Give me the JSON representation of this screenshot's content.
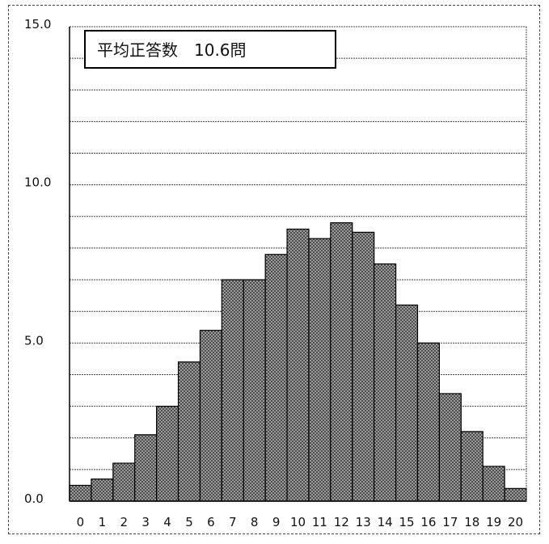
{
  "chart_data": {
    "type": "bar",
    "title": "",
    "xlabel": "",
    "ylabel": "",
    "ylim": [
      0,
      15
    ],
    "y_ticks": [
      "0.0",
      "5.0",
      "10.0",
      "15.0"
    ],
    "y_tick_values": [
      0,
      5,
      10,
      15
    ],
    "minor_gridline_step": 1,
    "grid": true,
    "annotation": "平均正答数　10.6問",
    "categories": [
      "0",
      "1",
      "2",
      "3",
      "4",
      "5",
      "6",
      "7",
      "8",
      "9",
      "10",
      "11",
      "12",
      "13",
      "14",
      "15",
      "16",
      "17",
      "18",
      "19",
      "20"
    ],
    "values": [
      0.5,
      0.7,
      1.2,
      2.1,
      3.0,
      4.4,
      5.4,
      7.0,
      7.0,
      7.8,
      8.6,
      8.3,
      8.8,
      8.5,
      7.5,
      6.2,
      5.0,
      3.4,
      2.2,
      1.1,
      0.4
    ],
    "colors": {
      "bar_fill": "#9a9a9a",
      "bar_stroke": "#000000",
      "grid": "#444444"
    }
  }
}
